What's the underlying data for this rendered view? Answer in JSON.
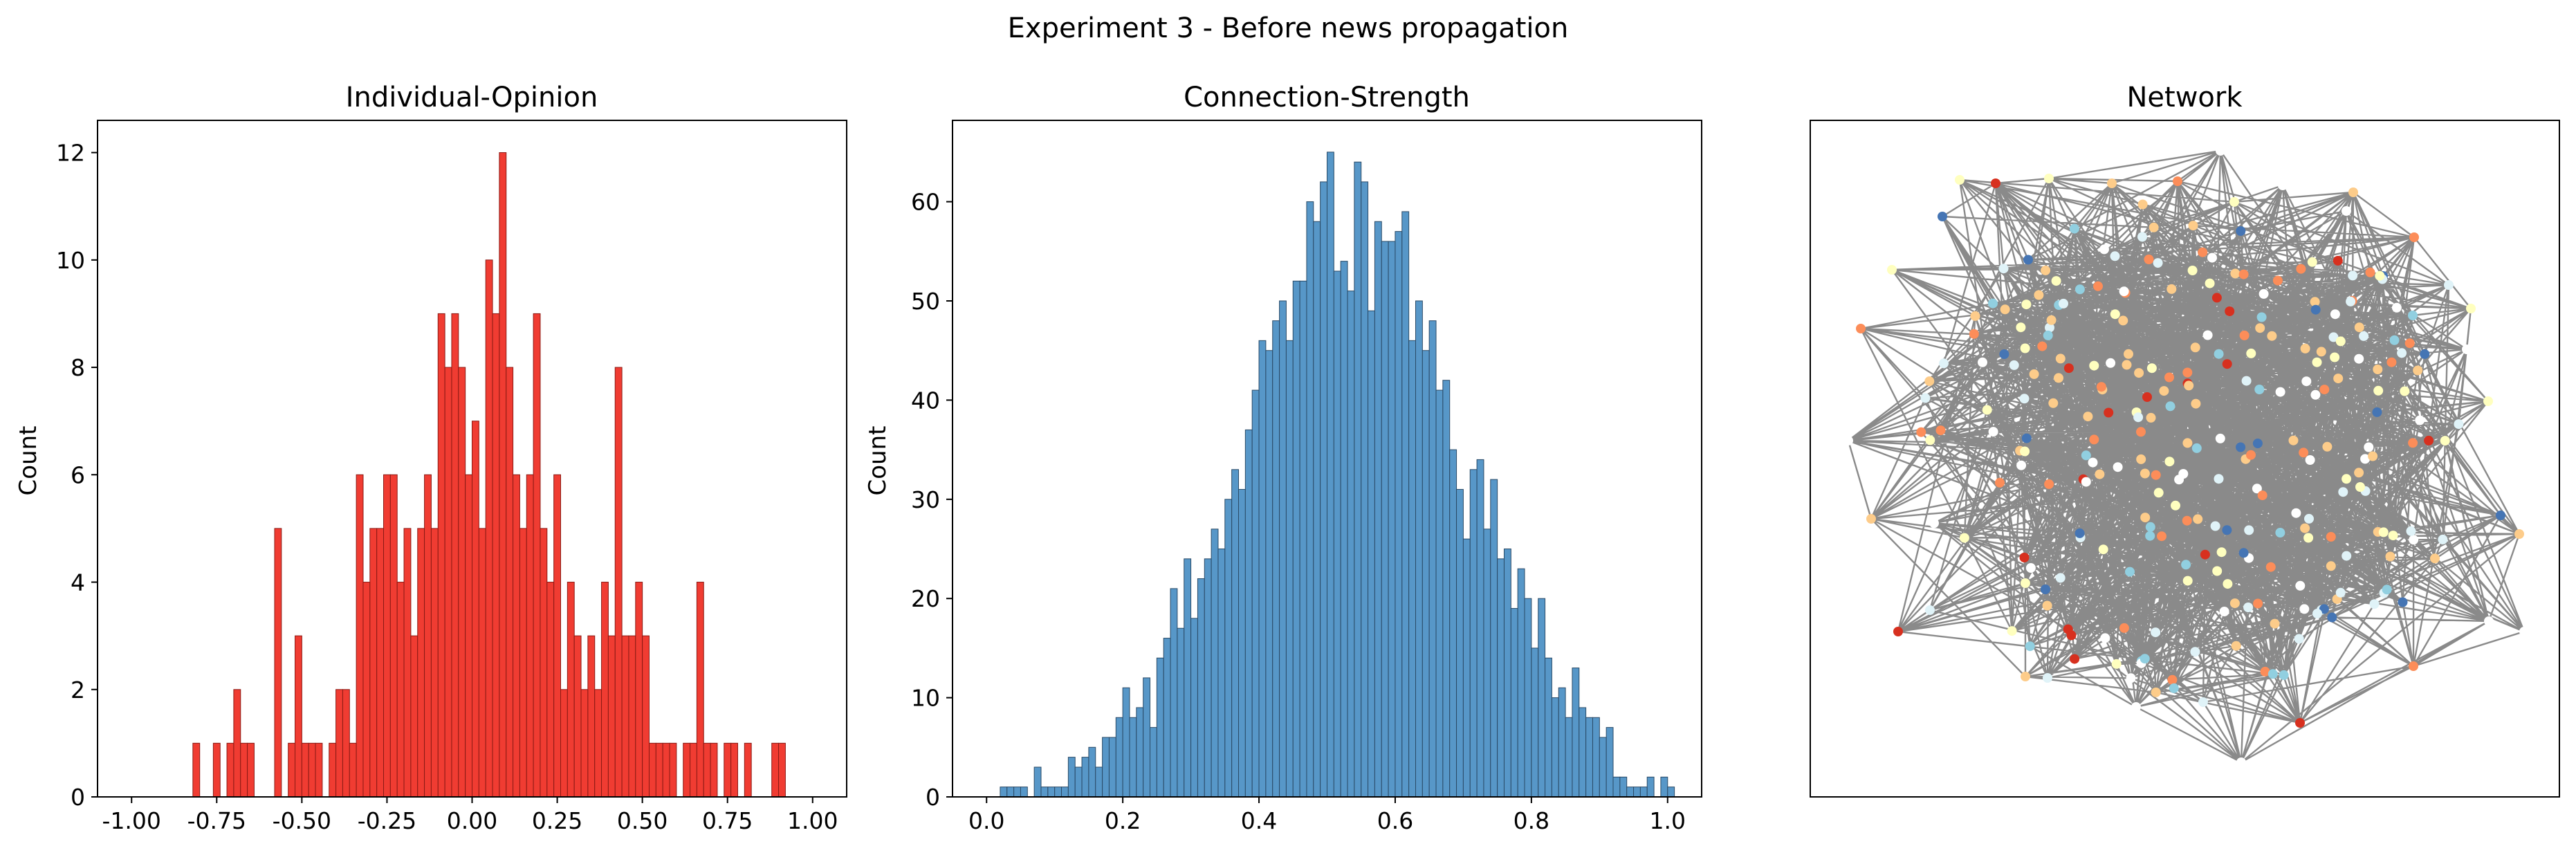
{
  "figure": {
    "suptitle": "Experiment 3 - Before news propagation"
  },
  "colors": {
    "opinion_bar": "#f03c32",
    "opinion_edge": "#8a1a14",
    "strength_bar": "#5797c8",
    "strength_edge": "#2a4a66",
    "network_edge": "#808080",
    "node_palette": [
      "#d7301f",
      "#fc8d59",
      "#fdcc8a",
      "#ffffbf",
      "#e0f3f8",
      "#91cfe0",
      "#4575b4",
      "#ffffff"
    ]
  },
  "chart_data": [
    {
      "type": "bar",
      "title": "Individual-Opinion",
      "xlabel": "",
      "ylabel": "Count",
      "xlim": [
        -1.1,
        1.1
      ],
      "ylim": [
        0,
        12.6
      ],
      "xticks": [
        "-1.00",
        "-0.75",
        "-0.50",
        "-0.25",
        "0.00",
        "0.25",
        "0.50",
        "0.75",
        "1.00"
      ],
      "xtick_values": [
        -1.0,
        -0.75,
        -0.5,
        -0.25,
        0.0,
        0.25,
        0.5,
        0.75,
        1.0
      ],
      "yticks": [
        "0",
        "2",
        "4",
        "6",
        "8",
        "10",
        "12"
      ],
      "ytick_values": [
        0,
        2,
        4,
        6,
        8,
        10,
        12
      ],
      "bin_start": -1.0,
      "bin_width": 0.02,
      "values": [
        0,
        0,
        0,
        0,
        0,
        0,
        0,
        0,
        0,
        1,
        0,
        0,
        1,
        0,
        1,
        2,
        1,
        1,
        0,
        0,
        0,
        5,
        0,
        1,
        3,
        1,
        1,
        1,
        0,
        1,
        2,
        2,
        1,
        6,
        4,
        5,
        5,
        6,
        6,
        4,
        5,
        3,
        5,
        6,
        5,
        9,
        8,
        9,
        8,
        6,
        7,
        5,
        10,
        9,
        12,
        8,
        6,
        5,
        6,
        9,
        5,
        4,
        6,
        2,
        4,
        3,
        2,
        3,
        2,
        4,
        3,
        8,
        3,
        3,
        4,
        3,
        1,
        1,
        1,
        1,
        0,
        1,
        1,
        4,
        1,
        1,
        0,
        1,
        1,
        0,
        1,
        0,
        0,
        0,
        1,
        1,
        0,
        0,
        0,
        0
      ]
    },
    {
      "type": "bar",
      "title": "Connection-Strength",
      "xlabel": "",
      "ylabel": "Count",
      "xlim": [
        -0.05,
        1.05
      ],
      "ylim": [
        0,
        68.2
      ],
      "xticks": [
        "0.0",
        "0.2",
        "0.4",
        "0.6",
        "0.8",
        "1.0"
      ],
      "xtick_values": [
        0.0,
        0.2,
        0.4,
        0.6,
        0.8,
        1.0
      ],
      "yticks": [
        "0",
        "10",
        "20",
        "30",
        "40",
        "50",
        "60"
      ],
      "ytick_values": [
        0,
        10,
        20,
        30,
        40,
        50,
        60
      ],
      "bin_start": 0.0,
      "bin_width": 0.01,
      "values": [
        0,
        0,
        1,
        1,
        1,
        1,
        0,
        3,
        1,
        1,
        1,
        1,
        4,
        3,
        4,
        5,
        3,
        6,
        6,
        8,
        11,
        8,
        9,
        12,
        7,
        14,
        16,
        21,
        17,
        24,
        18,
        22,
        24,
        27,
        25,
        30,
        33,
        31,
        37,
        41,
        46,
        45,
        48,
        50,
        46,
        52,
        52,
        60,
        58,
        62,
        65,
        53,
        54,
        51,
        64,
        62,
        49,
        58,
        56,
        56,
        57,
        59,
        46,
        50,
        45,
        48,
        41,
        42,
        35,
        31,
        26,
        33,
        34,
        27,
        32,
        24,
        25,
        19,
        23,
        20,
        15,
        20,
        14,
        10,
        11,
        8,
        13,
        9,
        8,
        8,
        6,
        7,
        2,
        2,
        1,
        1,
        1,
        2,
        0,
        2,
        1
      ]
    },
    {
      "type": "network",
      "title": "Network",
      "node_count": 300,
      "edge_count": 2400
    }
  ]
}
